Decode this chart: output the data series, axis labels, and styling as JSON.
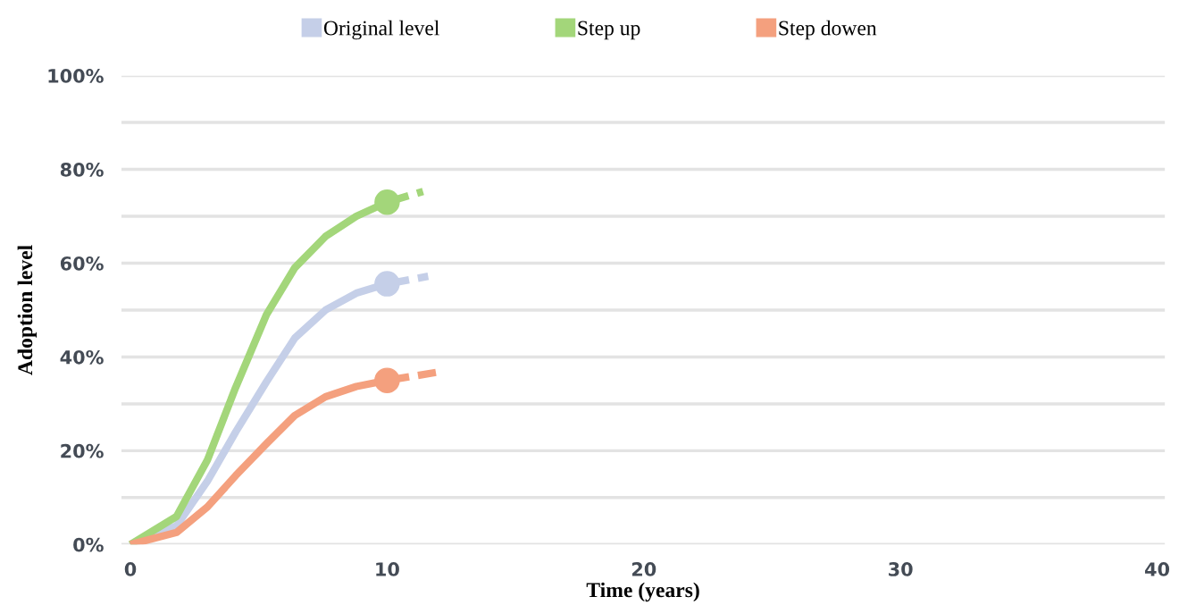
{
  "chart_data": {
    "type": "line",
    "xlabel": "Time (years)",
    "ylabel": "Adoption level",
    "xlim": [
      -0.35,
      40.3
    ],
    "xticks": [
      0,
      10,
      20,
      30,
      40
    ],
    "ylim": [
      0,
      100
    ],
    "yticks": [
      {
        "value": 0,
        "label": "0%"
      },
      {
        "value": 10,
        "label": null
      },
      {
        "value": 20,
        "label": "20%"
      },
      {
        "value": 30,
        "label": null
      },
      {
        "value": 40,
        "label": "40%"
      },
      {
        "value": 50,
        "label": null
      },
      {
        "value": 60,
        "label": "60%"
      },
      {
        "value": 70,
        "label": null
      },
      {
        "value": 80,
        "label": "80%"
      },
      {
        "value": 90,
        "label": null
      },
      {
        "value": 100,
        "label": "100%"
      }
    ],
    "grid": "y",
    "legend": "top",
    "series": [
      {
        "name": "Original level",
        "color": "#c5cfe8",
        "x": [
          0,
          1.8,
          3.0,
          4.1,
          5.3,
          6.4,
          7.6,
          8.8,
          10
        ],
        "values": [
          0,
          4,
          13.5,
          24,
          34.7,
          44,
          50,
          53.6,
          55.6
        ]
      },
      {
        "name": "Step up",
        "color": "#a3d67a",
        "x": [
          0,
          1.8,
          3.0,
          4.1,
          5.3,
          6.4,
          7.6,
          8.8,
          10
        ],
        "values": [
          0,
          6,
          18,
          33.5,
          49,
          59,
          65.7,
          70,
          73
        ]
      },
      {
        "name": "Step dowen",
        "color": "#f4a07e",
        "x": [
          0,
          1.8,
          3.0,
          4.1,
          5.3,
          6.4,
          7.6,
          8.8,
          10
        ],
        "values": [
          0,
          2.6,
          8,
          14.7,
          21.5,
          27.5,
          31.5,
          33.7,
          35
        ]
      },
      {
        "color": "#c5cfe8",
        "line_style": "dashed",
        "x": [
          10,
          11.6
        ],
        "values": [
          55.6,
          57.2
        ]
      },
      {
        "color": "#a3d67a",
        "line_style": "dashed",
        "x": [
          10,
          11.4
        ],
        "values": [
          73,
          75.3
        ]
      },
      {
        "color": "#f4a07e",
        "line_style": "dashed",
        "x": [
          10,
          11.9
        ],
        "values": [
          35,
          36.7
        ]
      },
      {
        "type": "scatter",
        "marker": "circle",
        "color": "#c5cfe8",
        "x": [
          10
        ],
        "values": [
          55.6
        ]
      },
      {
        "type": "scatter",
        "marker": "circle",
        "color": "#a3d67a",
        "x": [
          10
        ],
        "values": [
          73
        ]
      },
      {
        "type": "scatter",
        "marker": "circle",
        "color": "#f4a07e",
        "x": [
          10
        ],
        "values": [
          35
        ]
      }
    ]
  }
}
